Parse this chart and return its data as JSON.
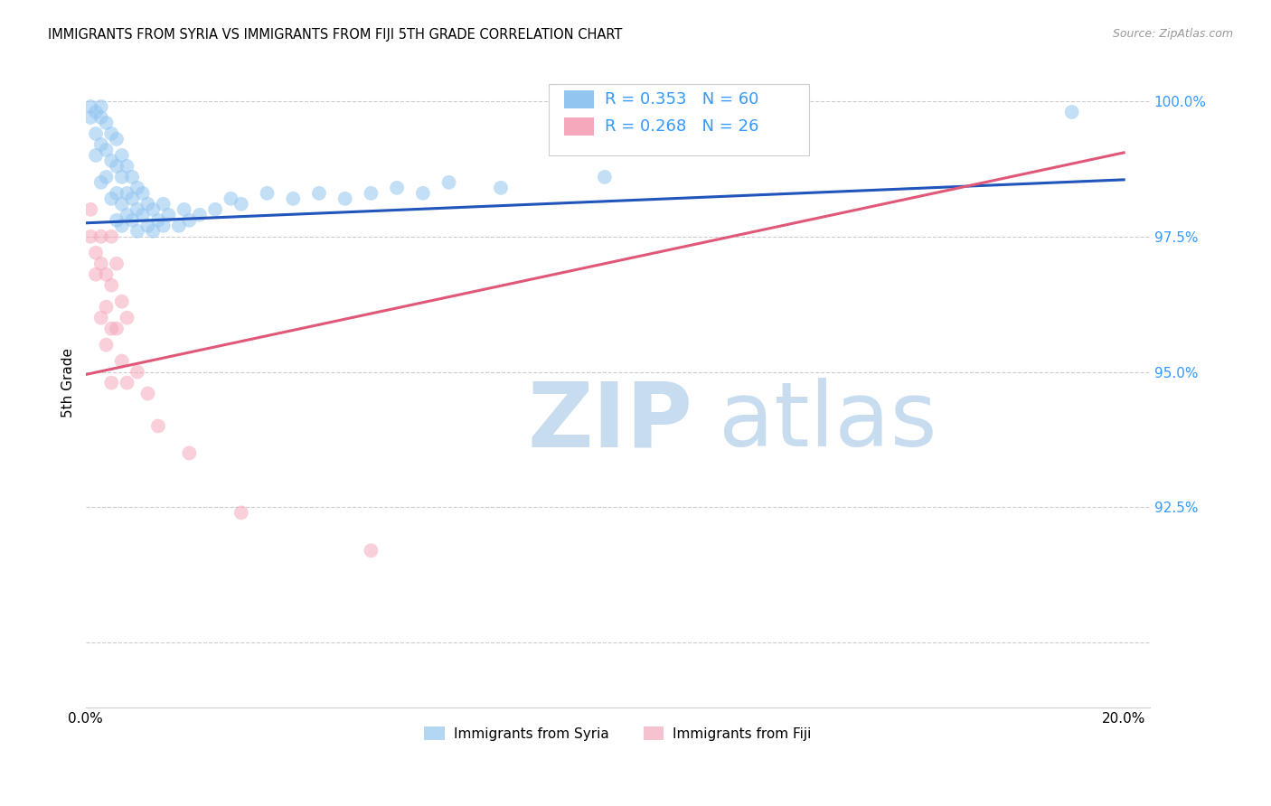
{
  "title": "IMMIGRANTS FROM SYRIA VS IMMIGRANTS FROM FIJI 5TH GRADE CORRELATION CHART",
  "source": "Source: ZipAtlas.com",
  "ylabel": "5th Grade",
  "x_tick_positions": [
    0.0,
    0.05,
    0.1,
    0.15,
    0.2
  ],
  "x_tick_labels": [
    "0.0%",
    "",
    "",
    "",
    "20.0%"
  ],
  "y_tick_positions": [
    0.9,
    0.925,
    0.95,
    0.975,
    1.0
  ],
  "y_tick_labels": [
    "",
    "92.5%",
    "95.0%",
    "97.5%",
    "100.0%"
  ],
  "xlim": [
    0.0,
    0.205
  ],
  "ylim": [
    0.888,
    1.008
  ],
  "label_syria": "Immigrants from Syria",
  "label_fiji": "Immigrants from Fiji",
  "color_syria": "#92C5F0",
  "color_fiji": "#F5A8BC",
  "line_color_syria": "#2255BB",
  "line_color_fiji": "#E05878",
  "watermark_zip_color": "#C8DCF0",
  "watermark_atlas_color": "#C8DCF0",
  "axis_label_color": "#3399FF",
  "legend_r1": "R = 0.353",
  "legend_n1": "N = 60",
  "legend_r2": "R = 0.268",
  "legend_n2": "N = 26",
  "syria_x": [
    0.001,
    0.001,
    0.002,
    0.002,
    0.002,
    0.003,
    0.003,
    0.003,
    0.003,
    0.004,
    0.004,
    0.004,
    0.005,
    0.005,
    0.005,
    0.006,
    0.006,
    0.006,
    0.006,
    0.007,
    0.007,
    0.007,
    0.007,
    0.008,
    0.008,
    0.008,
    0.009,
    0.009,
    0.009,
    0.01,
    0.01,
    0.01,
    0.011,
    0.011,
    0.012,
    0.012,
    0.013,
    0.013,
    0.014,
    0.015,
    0.015,
    0.016,
    0.018,
    0.019,
    0.02,
    0.022,
    0.025,
    0.028,
    0.03,
    0.035,
    0.04,
    0.045,
    0.05,
    0.055,
    0.06,
    0.065,
    0.07,
    0.08,
    0.1,
    0.19
  ],
  "syria_y": [
    0.999,
    0.997,
    0.998,
    0.994,
    0.99,
    0.999,
    0.997,
    0.992,
    0.985,
    0.996,
    0.991,
    0.986,
    0.994,
    0.989,
    0.982,
    0.993,
    0.988,
    0.983,
    0.978,
    0.99,
    0.986,
    0.981,
    0.977,
    0.988,
    0.983,
    0.979,
    0.986,
    0.982,
    0.978,
    0.984,
    0.98,
    0.976,
    0.983,
    0.979,
    0.981,
    0.977,
    0.98,
    0.976,
    0.978,
    0.981,
    0.977,
    0.979,
    0.977,
    0.98,
    0.978,
    0.979,
    0.98,
    0.982,
    0.981,
    0.983,
    0.982,
    0.983,
    0.982,
    0.983,
    0.984,
    0.983,
    0.985,
    0.984,
    0.986,
    0.998
  ],
  "fiji_x": [
    0.001,
    0.001,
    0.002,
    0.002,
    0.003,
    0.003,
    0.003,
    0.004,
    0.004,
    0.004,
    0.005,
    0.005,
    0.005,
    0.005,
    0.006,
    0.006,
    0.007,
    0.007,
    0.008,
    0.008,
    0.01,
    0.012,
    0.014,
    0.02,
    0.03,
    0.055
  ],
  "fiji_y": [
    0.98,
    0.975,
    0.972,
    0.968,
    0.975,
    0.97,
    0.96,
    0.968,
    0.962,
    0.955,
    0.975,
    0.966,
    0.958,
    0.948,
    0.97,
    0.958,
    0.963,
    0.952,
    0.96,
    0.948,
    0.95,
    0.946,
    0.94,
    0.935,
    0.924,
    0.917
  ],
  "syria_line_x": [
    0.0,
    0.2
  ],
  "syria_line_y": [
    0.9775,
    0.9855
  ],
  "fiji_line_x": [
    0.0,
    0.2
  ],
  "fiji_line_y": [
    0.9495,
    0.9905
  ]
}
